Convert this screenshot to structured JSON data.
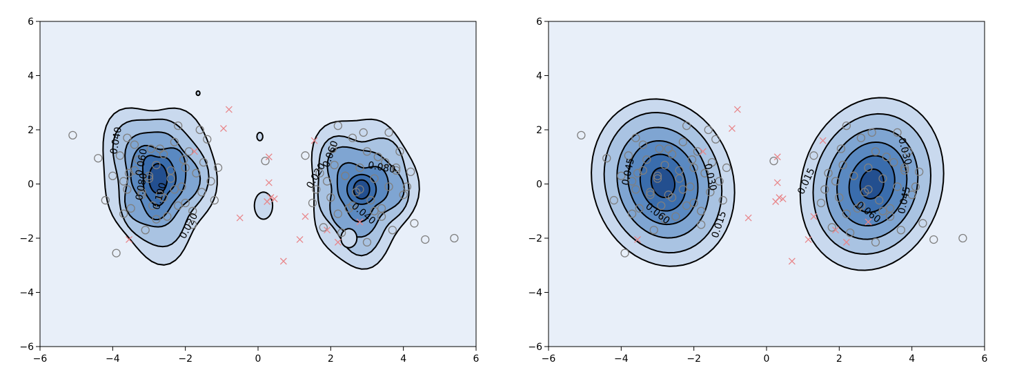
{
  "chart_data": [
    {
      "type": "contour",
      "title": "",
      "xlabel": "",
      "ylabel": "",
      "xlim": [
        -6,
        6
      ],
      "ylim": [
        -6,
        6
      ],
      "xticks": [
        "−6",
        "−4",
        "−2",
        "0",
        "2",
        "4",
        "6"
      ],
      "yticks": [
        "−6",
        "−4",
        "−2",
        "0",
        "2",
        "4",
        "6"
      ],
      "grid": false,
      "fill_colormap": [
        "#e8eff9",
        "#c9d9ee",
        "#a9c3e2",
        "#7fa5d2",
        "#5a89c1",
        "#3a6dad",
        "#234f8f"
      ],
      "contour_labels": [
        {
          "text": "0.040",
          "x": -3.9,
          "y": 1.6,
          "rotation": -80
        },
        {
          "text": "0.060",
          "x": -3.2,
          "y": 0.8,
          "rotation": -80
        },
        {
          "text": "0.080",
          "x": -3.2,
          "y": -0.1,
          "rotation": -80
        },
        {
          "text": "0.100",
          "x": -2.7,
          "y": -0.45,
          "rotation": -75
        },
        {
          "text": "0.020",
          "x": -1.9,
          "y": -1.55,
          "rotation": -62
        },
        {
          "text": "0.020",
          "x": 1.6,
          "y": 0.3,
          "rotation": -60
        },
        {
          "text": "0.060",
          "x": 2.0,
          "y": 1.1,
          "rotation": -70
        },
        {
          "text": "0.080",
          "x": 3.4,
          "y": 0.6,
          "rotation": 10
        },
        {
          "text": "0.040",
          "x": 2.9,
          "y": -1.1,
          "rotation": 40
        }
      ],
      "series": [
        {
          "kind": "observed",
          "marker": "o",
          "color": "#7f7f7f",
          "x": [
            -5.1,
            -4.4,
            -4.2,
            -4.0,
            -3.9,
            -3.8,
            -3.7,
            -3.6,
            -3.55,
            -3.5,
            -3.4,
            -3.3,
            -3.2,
            -3.1,
            -3.0,
            -2.95,
            -2.9,
            -2.8,
            -2.7,
            -2.6,
            -2.5,
            -2.4,
            -2.3,
            -2.2,
            -2.1,
            -2.05,
            -2.0,
            -1.9,
            -1.8,
            -1.7,
            -1.6,
            -1.55,
            -1.5,
            -1.4,
            -1.3,
            -1.2,
            -1.1,
            -3.6,
            -3.4,
            -3.0,
            -2.8,
            -2.6,
            -2.4,
            -2.2,
            -2.0,
            -1.8,
            -3.7,
            -3.2,
            -2.7,
            -2.3,
            0.2,
            1.3,
            1.5,
            1.6,
            1.7,
            1.8,
            1.9,
            2.0,
            2.05,
            2.1,
            2.2,
            2.3,
            2.4,
            2.5,
            2.6,
            2.7,
            2.8,
            2.9,
            3.0,
            3.1,
            3.2,
            3.3,
            3.4,
            3.5,
            3.6,
            3.7,
            3.8,
            3.9,
            4.0,
            4.1,
            4.2,
            4.3,
            2.2,
            2.6,
            3.0,
            3.4,
            3.8,
            2.4,
            2.8,
            3.2,
            3.6,
            4.6,
            5.4
          ],
          "y": [
            1.8,
            0.95,
            -0.6,
            0.3,
            -2.55,
            1.05,
            -1.1,
            1.7,
            0.4,
            -0.9,
            1.45,
            0.9,
            -0.3,
            -1.7,
            0.2,
            1.3,
            -0.8,
            0.7,
            -0.4,
            1.1,
            -1.2,
            0.5,
            1.55,
            2.15,
            -0.1,
            0.9,
            -0.7,
            1.2,
            -1.5,
            0.4,
            2.0,
            -0.3,
            0.8,
            1.65,
            0.1,
            -0.6,
            0.6,
            -0.2,
            0.5,
            0.3,
            -1.3,
            -0.5,
            0.2,
            -0.8,
            0.6,
            -1.0,
            0.1,
            -0.4,
            1.3,
            -0.2,
            0.85,
            1.05,
            -0.7,
            -0.2,
            0.4,
            -1.6,
            0.1,
            -0.5,
            1.3,
            0.7,
            2.15,
            -1.8,
            0.3,
            -0.9,
            1.7,
            -0.3,
            0.6,
            1.9,
            -2.15,
            -0.6,
            0.2,
            1.0,
            -1.2,
            0.8,
            -0.1,
            -1.7,
            0.5,
            1.2,
            -0.4,
            -0.1,
            0.45,
            -1.45,
            -1.1,
            -0.8,
            1.2,
            -0.9,
            0.6,
            0.3,
            -0.2,
            -1.0,
            1.9,
            -2.05,
            -2.0
          ]
        },
        {
          "kind": "missing",
          "marker": "x",
          "color": "#e8868a",
          "x": [
            -3.55,
            -1.75,
            -0.95,
            -0.8,
            -0.5,
            0.25,
            0.3,
            0.3,
            0.35,
            0.45,
            0.7,
            1.15,
            1.3,
            1.55,
            1.9,
            2.2,
            2.8
          ],
          "y": [
            -2.05,
            1.2,
            2.05,
            2.75,
            -1.25,
            -0.65,
            1.0,
            0.05,
            -0.5,
            -0.55,
            -2.85,
            -2.05,
            -1.2,
            1.6,
            -1.7,
            -2.15,
            -1.4
          ]
        }
      ]
    },
    {
      "type": "contour",
      "title": "",
      "xlabel": "",
      "ylabel": "",
      "xlim": [
        -6,
        6
      ],
      "ylim": [
        -6,
        6
      ],
      "xticks": [
        "−6",
        "−4",
        "−2",
        "0",
        "2",
        "4",
        "6"
      ],
      "yticks": [
        "−6",
        "−4",
        "−2",
        "0",
        "2",
        "4",
        "6"
      ],
      "grid": false,
      "fill_colormap": [
        "#e8eff9",
        "#c9d9ee",
        "#a9c3e2",
        "#7fa5d2",
        "#5a89c1",
        "#3a6dad",
        "#234f8f"
      ],
      "contour_labels": [
        {
          "text": "0.045",
          "x": -3.8,
          "y": 0.45,
          "rotation": -78
        },
        {
          "text": "0.060",
          "x": -3.0,
          "y": -1.1,
          "rotation": 38
        },
        {
          "text": "0.030",
          "x": -1.55,
          "y": 0.25,
          "rotation": 78
        },
        {
          "text": "0.015",
          "x": -1.3,
          "y": -1.5,
          "rotation": -72
        },
        {
          "text": "0.015",
          "x": 1.1,
          "y": 0.1,
          "rotation": -65
        },
        {
          "text": "0.060",
          "x": 2.8,
          "y": -1.05,
          "rotation": 38
        },
        {
          "text": "0.030",
          "x": 3.8,
          "y": 1.2,
          "rotation": 75
        },
        {
          "text": "0.045",
          "x": 3.8,
          "y": -0.6,
          "rotation": -78
        }
      ],
      "series": [
        {
          "kind": "observed",
          "marker": "o",
          "color": "#7f7f7f",
          "x": [
            -5.1,
            -4.4,
            -4.2,
            -4.0,
            -3.9,
            -3.8,
            -3.7,
            -3.6,
            -3.55,
            -3.5,
            -3.4,
            -3.3,
            -3.2,
            -3.1,
            -3.0,
            -2.95,
            -2.9,
            -2.8,
            -2.7,
            -2.6,
            -2.5,
            -2.4,
            -2.3,
            -2.2,
            -2.1,
            -2.05,
            -2.0,
            -1.9,
            -1.8,
            -1.7,
            -1.6,
            -1.55,
            -1.5,
            -1.4,
            -1.3,
            -1.2,
            -1.1,
            -3.6,
            -3.4,
            -3.0,
            -2.8,
            -2.6,
            -2.4,
            -2.2,
            -2.0,
            -1.8,
            -3.7,
            -3.2,
            -2.7,
            -2.3,
            0.2,
            1.3,
            1.5,
            1.6,
            1.7,
            1.8,
            1.9,
            2.0,
            2.05,
            2.1,
            2.2,
            2.3,
            2.4,
            2.5,
            2.6,
            2.7,
            2.8,
            2.9,
            3.0,
            3.1,
            3.2,
            3.3,
            3.4,
            3.5,
            3.6,
            3.7,
            3.8,
            3.9,
            4.0,
            4.1,
            4.2,
            4.3,
            2.2,
            2.6,
            3.0,
            3.4,
            3.8,
            2.4,
            2.8,
            3.2,
            3.6,
            4.6,
            5.4
          ],
          "y": [
            1.8,
            0.95,
            -0.6,
            0.3,
            -2.55,
            1.05,
            -1.1,
            1.7,
            0.4,
            -0.9,
            1.45,
            0.9,
            -0.3,
            -1.7,
            0.2,
            1.3,
            -0.8,
            0.7,
            -0.4,
            1.1,
            -1.2,
            0.5,
            1.55,
            2.15,
            -0.1,
            0.9,
            -0.7,
            1.2,
            -1.5,
            0.4,
            2.0,
            -0.3,
            0.8,
            1.65,
            0.1,
            -0.6,
            0.6,
            -0.2,
            0.5,
            0.3,
            -1.3,
            -0.5,
            0.2,
            -0.8,
            0.6,
            -1.0,
            0.1,
            -0.4,
            1.3,
            -0.2,
            0.85,
            1.05,
            -0.7,
            -0.2,
            0.4,
            -1.6,
            0.1,
            -0.5,
            1.3,
            0.7,
            2.15,
            -1.8,
            0.3,
            -0.9,
            1.7,
            -0.3,
            0.6,
            1.9,
            -2.15,
            -0.6,
            0.2,
            1.0,
            -1.2,
            0.8,
            -0.1,
            -1.7,
            0.5,
            1.2,
            -0.4,
            -0.1,
            0.45,
            -1.45,
            -1.1,
            -0.8,
            1.2,
            -0.9,
            0.6,
            0.3,
            -0.2,
            -1.0,
            1.9,
            -2.05,
            -2.0
          ]
        },
        {
          "kind": "missing",
          "marker": "x",
          "color": "#e8868a",
          "x": [
            -3.55,
            -1.75,
            -0.95,
            -0.8,
            -0.5,
            0.25,
            0.3,
            0.3,
            0.35,
            0.45,
            0.7,
            1.15,
            1.3,
            1.55,
            1.9,
            2.2,
            2.8
          ],
          "y": [
            -2.05,
            1.2,
            2.05,
            2.75,
            -1.25,
            -0.65,
            1.0,
            0.05,
            -0.5,
            -0.55,
            -2.85,
            -2.05,
            -1.2,
            1.6,
            -1.7,
            -2.15,
            -1.4
          ]
        }
      ]
    }
  ]
}
